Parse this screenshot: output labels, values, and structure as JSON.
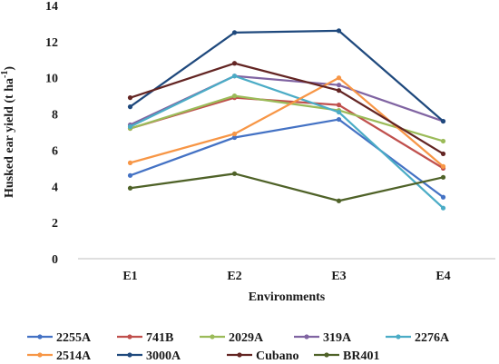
{
  "chart_data": {
    "type": "line",
    "categories": [
      "E1",
      "E2",
      "E3",
      "E4"
    ],
    "xlabel": "Environments",
    "ylabel": "Husked ear yield (t ha",
    "ylabel_sup": "-1",
    "ylabel_close": ")",
    "ylim": [
      0,
      14
    ],
    "yticks": [
      0,
      2,
      4,
      6,
      8,
      10,
      12,
      14
    ],
    "grid": false,
    "legend_position": "bottom",
    "series": [
      {
        "name": "2255A",
        "color": "#4472C4",
        "values": [
          4.6,
          6.7,
          7.7,
          3.4
        ]
      },
      {
        "name": "741B",
        "color": "#C0504D",
        "values": [
          7.2,
          8.9,
          8.5,
          5.0
        ]
      },
      {
        "name": "2029A",
        "color": "#9BBB59",
        "values": [
          7.2,
          9.0,
          8.2,
          6.5
        ]
      },
      {
        "name": "319A",
        "color": "#8064A2",
        "values": [
          7.4,
          10.1,
          9.6,
          7.6
        ]
      },
      {
        "name": "2276A",
        "color": "#4BACC6",
        "values": [
          7.3,
          10.1,
          8.1,
          2.8
        ]
      },
      {
        "name": "2514A",
        "color": "#F79646",
        "values": [
          5.3,
          6.9,
          10.0,
          5.1
        ]
      },
      {
        "name": "3000A",
        "color": "#1F497D",
        "values": [
          8.4,
          12.5,
          12.6,
          7.6
        ]
      },
      {
        "name": "Cubano",
        "color": "#632523",
        "values": [
          8.9,
          10.8,
          9.3,
          5.8
        ]
      },
      {
        "name": "BR401",
        "color": "#4F6228",
        "values": [
          3.9,
          4.7,
          3.2,
          4.5
        ]
      }
    ]
  }
}
